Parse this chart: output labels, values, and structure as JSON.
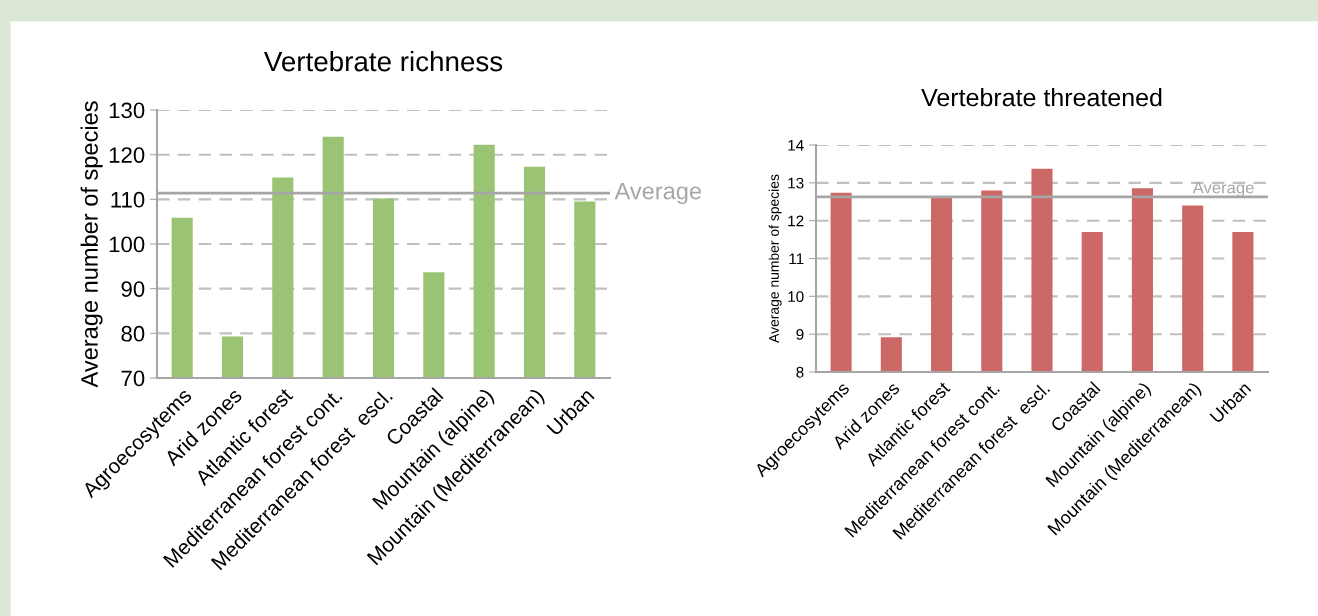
{
  "chart_data": [
    {
      "type": "bar",
      "title": "Vertebrate richness",
      "ylabel": "Average number of species",
      "categories": [
        "Agroecosytems",
        "Arid zones",
        "Atlantic forest",
        "Mediterranean forest cont.",
        "Mediterranean forest  escl.",
        "Coastal",
        "Mountain (alpine)",
        "Mountain (Mediterranean)",
        "Urban"
      ],
      "values": [
        105.9,
        79.3,
        114.9,
        124.0,
        110.2,
        93.7,
        122.2,
        117.3,
        109.5
      ],
      "color": "#9bc374",
      "ylim": [
        70,
        130
      ],
      "yticks": [
        70,
        80,
        90,
        100,
        110,
        120,
        130
      ],
      "grid": "y",
      "ref_lines": [
        {
          "axis": "y",
          "value": 111.4,
          "label": "Average",
          "color": "#a6a6a6",
          "line_style": "solid"
        }
      ]
    },
    {
      "type": "bar",
      "title": "Vertebrate threatened",
      "ylabel": "Average number of species",
      "categories": [
        "Agroecosytems",
        "Arid zones",
        "Atlantic forest",
        "Mediterranean forest cont.",
        "Mediterranean forest  escl.",
        "Coastal",
        "Mountain (alpine)",
        "Mountain (Mediterranean)",
        "Urban"
      ],
      "values": [
        12.74,
        8.92,
        12.6,
        12.8,
        13.37,
        11.7,
        12.86,
        12.4,
        11.7
      ],
      "color": "#cc6966",
      "ylim": [
        8,
        14
      ],
      "yticks": [
        8,
        9,
        10,
        11,
        12,
        13,
        14
      ],
      "grid": "y",
      "ref_lines": [
        {
          "axis": "y",
          "value": 12.63,
          "label": "Average",
          "color": "#a6a6a6",
          "line_style": "solid"
        }
      ]
    }
  ]
}
